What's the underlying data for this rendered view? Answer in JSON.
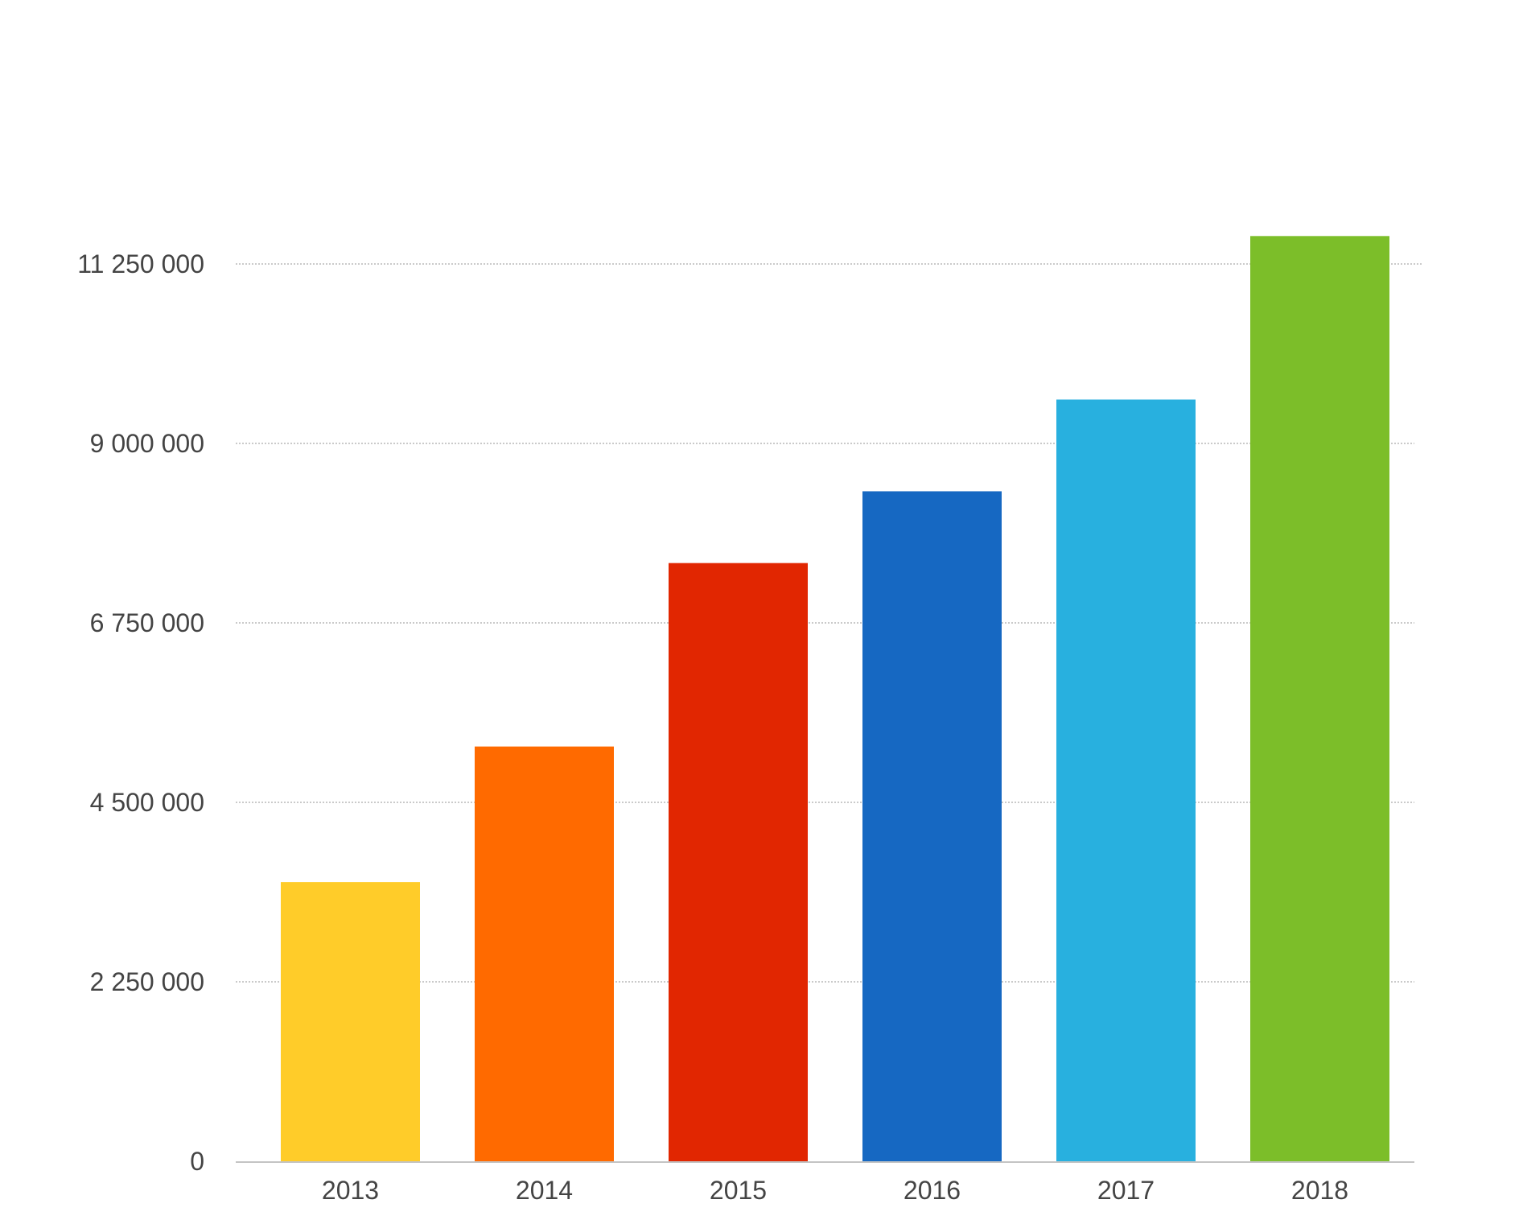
{
  "chart_data": {
    "type": "bar",
    "title": "",
    "xlabel": "",
    "ylabel": "",
    "categories": [
      "2013",
      "2014",
      "2015",
      "2016",
      "2017",
      "2018"
    ],
    "values": [
      3500000,
      5200000,
      7500000,
      8400000,
      9550000,
      11600000
    ],
    "colors": [
      "#ffcc29",
      "#ff6a00",
      "#e12601",
      "#1668c2",
      "#28b0df",
      "#7cbe29"
    ],
    "ylim": [
      0,
      11250000
    ],
    "yticks": [
      0,
      2250000,
      4500000,
      6750000,
      9000000,
      11250000
    ],
    "ytick_labels": [
      "0",
      "2 250 000",
      "4 500 000",
      "6 750 000",
      "9 000 000",
      "11 250 000"
    ],
    "grid": true,
    "legend": "none"
  }
}
